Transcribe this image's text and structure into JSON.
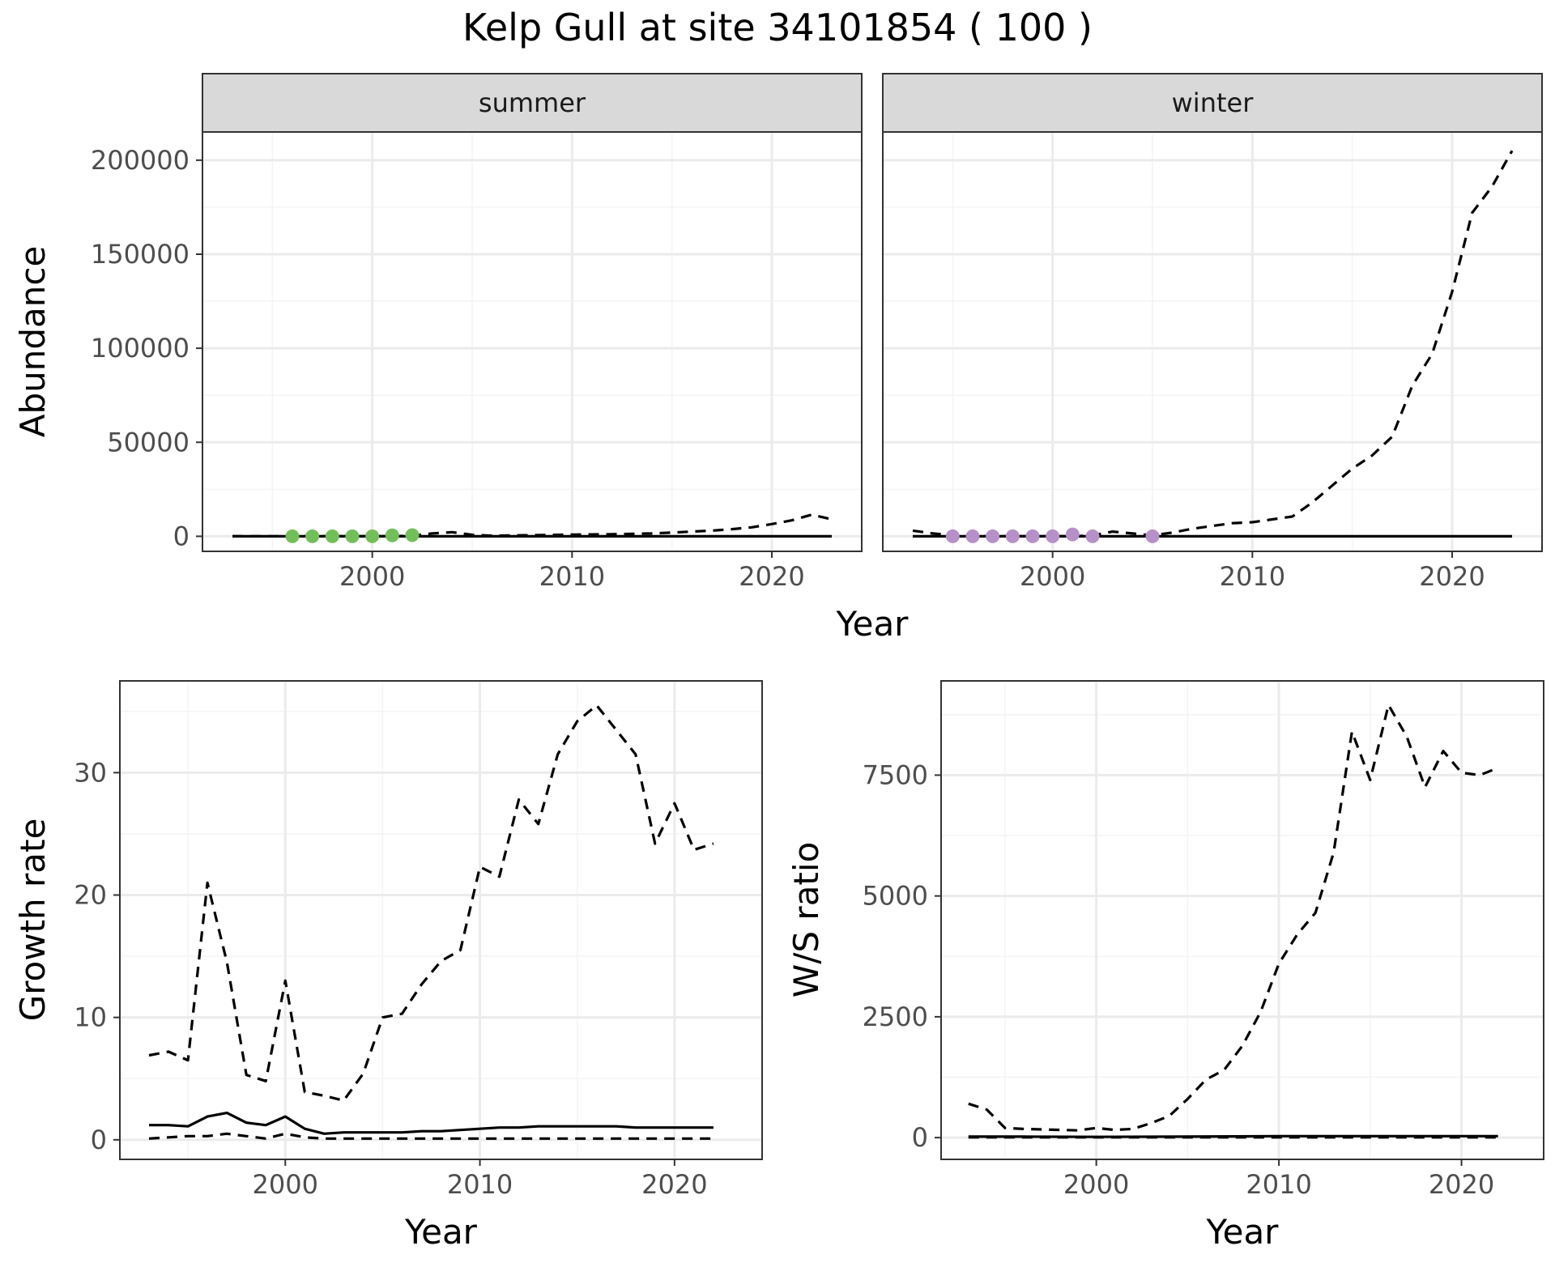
{
  "title": "Kelp Gull at site 34101854 ( 100 )",
  "colors": {
    "summer_points": "#72bf5a",
    "winter_points": "#b690c8",
    "lines": "#000000",
    "strip_fill": "#d9d9d9",
    "grid_major": "#ebebeb",
    "grid_minor": "#f4f4f4"
  },
  "chart_data": [
    {
      "id": "abundance",
      "type": "line",
      "ylabel": "Abundance",
      "xlabel": "Year",
      "xlim": [
        1991.5,
        2024.5
      ],
      "ylim": [
        -8000,
        215000
      ],
      "xticks": [
        2000,
        2010,
        2020
      ],
      "yticks": [
        0,
        50000,
        100000,
        150000,
        200000
      ],
      "grid": true,
      "facets": [
        {
          "label": "summer",
          "points_color": "#72bf5a",
          "points": {
            "x": [
              1996,
              1997,
              1998,
              1999,
              2000,
              2001,
              2002
            ],
            "y": [
              0,
              0,
              0,
              0,
              0,
              500,
              600
            ]
          },
          "series": [
            {
              "style": "dashed",
              "x": [
                1993,
                1994,
                1995,
                1996,
                1997,
                1998,
                1999,
                2000,
                2001,
                2002,
                2003,
                2004,
                2005,
                2006,
                2007,
                2008,
                2009,
                2010,
                2011,
                2012,
                2013,
                2014,
                2015,
                2016,
                2017,
                2018,
                2019,
                2020,
                2021,
                2022,
                2023
              ],
              "y": [
                0,
                0,
                0,
                0,
                0,
                0,
                0,
                0,
                0,
                300,
                1500,
                2200,
                800,
                300,
                500,
                600,
                700,
                900,
                1000,
                1100,
                1300,
                1500,
                2000,
                2500,
                3000,
                3800,
                4800,
                6500,
                8500,
                11500,
                9000
              ]
            },
            {
              "style": "solid",
              "x": [
                1993,
                1996,
                2000,
                2005,
                2010,
                2015,
                2020,
                2023
              ],
              "y": [
                0,
                0,
                0,
                0,
                0,
                0,
                0,
                0
              ]
            }
          ]
        },
        {
          "label": "winter",
          "points_color": "#b690c8",
          "points": {
            "x": [
              1995,
              1996,
              1997,
              1998,
              1999,
              2000,
              2001,
              2002,
              2005
            ],
            "y": [
              0,
              0,
              0,
              0,
              0,
              0,
              1000,
              0,
              0
            ]
          },
          "series": [
            {
              "style": "dashed",
              "x": [
                1993,
                1994,
                1995,
                1996,
                1997,
                1998,
                1999,
                2000,
                2001,
                2002,
                2003,
                2004,
                2005,
                2006,
                2007,
                2008,
                2009,
                2010,
                2011,
                2012,
                2013,
                2014,
                2015,
                2016,
                2017,
                2018,
                2019,
                2020,
                2021,
                2022,
                2023
              ],
              "y": [
                3000,
                1500,
                500,
                0,
                0,
                0,
                0,
                0,
                0,
                500,
                2500,
                1500,
                500,
                2000,
                4000,
                5500,
                7000,
                7500,
                9000,
                10500,
                18000,
                27000,
                36000,
                43000,
                53000,
                80000,
                97000,
                130000,
                172000,
                186000,
                205000
              ]
            },
            {
              "style": "solid",
              "x": [
                1993,
                1996,
                2000,
                2005,
                2010,
                2015,
                2020,
                2023
              ],
              "y": [
                0,
                0,
                0,
                0,
                0,
                0,
                0,
                0
              ]
            }
          ]
        }
      ]
    },
    {
      "id": "growth",
      "type": "line",
      "xlabel": "Year",
      "ylabel": "Growth rate",
      "xlim": [
        1991.5,
        2024.5
      ],
      "ylim": [
        -1.6,
        37.5
      ],
      "xticks": [
        2000,
        2010,
        2020
      ],
      "yticks": [
        0,
        10,
        20,
        30
      ],
      "grid": true,
      "series": [
        {
          "style": "dashed",
          "x": [
            1993,
            1994,
            1995,
            1996,
            1997,
            1998,
            1999,
            2000,
            2001,
            2002,
            2003,
            2004,
            2005,
            2006,
            2007,
            2008,
            2009,
            2010,
            2011,
            2012,
            2013,
            2014,
            2015,
            2016,
            2017,
            2018,
            2019,
            2020,
            2021,
            2022
          ],
          "y": [
            6.9,
            7.2,
            6.5,
            21,
            14.5,
            5.3,
            4.8,
            13,
            3.9,
            3.6,
            3.2,
            5.4,
            10,
            10.3,
            12.7,
            14.6,
            15.5,
            22.3,
            21.5,
            27.8,
            25.8,
            31.5,
            34.2,
            35.5,
            33.5,
            31.5,
            24.2,
            27.5,
            23.7,
            24.2
          ]
        },
        {
          "style": "solid",
          "x": [
            1993,
            1994,
            1995,
            1996,
            1997,
            1998,
            1999,
            2000,
            2001,
            2002,
            2003,
            2004,
            2005,
            2006,
            2007,
            2008,
            2009,
            2010,
            2011,
            2012,
            2013,
            2014,
            2015,
            2016,
            2017,
            2018,
            2019,
            2020,
            2021,
            2022
          ],
          "y": [
            1.2,
            1.2,
            1.1,
            1.9,
            2.2,
            1.4,
            1.2,
            1.9,
            0.9,
            0.5,
            0.6,
            0.6,
            0.6,
            0.6,
            0.7,
            0.7,
            0.8,
            0.9,
            1.0,
            1.0,
            1.1,
            1.1,
            1.1,
            1.1,
            1.1,
            1.0,
            1.0,
            1.0,
            1.0,
            1.0
          ]
        },
        {
          "style": "dashed",
          "x": [
            1993,
            1994,
            1995,
            1996,
            1997,
            1998,
            1999,
            2000,
            2001,
            2002,
            2003,
            2004,
            2005,
            2006,
            2007,
            2008,
            2009,
            2010,
            2011,
            2012,
            2013,
            2014,
            2015,
            2016,
            2017,
            2018,
            2019,
            2020,
            2021,
            2022
          ],
          "y": [
            0.1,
            0.2,
            0.3,
            0.3,
            0.5,
            0.3,
            0.1,
            0.5,
            0.2,
            0.1,
            0.1,
            0.1,
            0.1,
            0.1,
            0.1,
            0.1,
            0.1,
            0.1,
            0.1,
            0.1,
            0.1,
            0.1,
            0.1,
            0.1,
            0.1,
            0.1,
            0.1,
            0.1,
            0.1,
            0.1
          ]
        }
      ]
    },
    {
      "id": "ratio",
      "type": "line",
      "xlabel": "Year",
      "ylabel": "W/S ratio",
      "xlim": [
        1991.5,
        2024.5
      ],
      "ylim": [
        -450,
        9450
      ],
      "xticks": [
        2000,
        2010,
        2020
      ],
      "yticks": [
        0,
        2500,
        5000,
        7500
      ],
      "grid": true,
      "series": [
        {
          "style": "dashed",
          "x": [
            1993,
            1994,
            1995,
            1996,
            1997,
            1998,
            1999,
            2000,
            2001,
            2002,
            2003,
            2004,
            2005,
            2006,
            2007,
            2008,
            2009,
            2010,
            2011,
            2012,
            2013,
            2014,
            2015,
            2016,
            2017,
            2018,
            2019,
            2020,
            2021,
            2022
          ],
          "y": [
            700,
            580,
            200,
            180,
            170,
            160,
            150,
            200,
            160,
            180,
            300,
            450,
            800,
            1200,
            1400,
            1900,
            2600,
            3600,
            4200,
            4650,
            5900,
            8400,
            7400,
            8950,
            8300,
            7250,
            8000,
            7550,
            7500,
            7650
          ]
        },
        {
          "style": "solid",
          "x": [
            1993,
            1996,
            2000,
            2005,
            2010,
            2015,
            2020,
            2022
          ],
          "y": [
            20,
            20,
            15,
            20,
            30,
            30,
            30,
            30
          ]
        },
        {
          "style": "dashed",
          "x": [
            1993,
            1996,
            2000,
            2005,
            2010,
            2015,
            2020,
            2022
          ],
          "y": [
            5,
            5,
            5,
            5,
            5,
            5,
            5,
            5
          ]
        }
      ]
    }
  ]
}
